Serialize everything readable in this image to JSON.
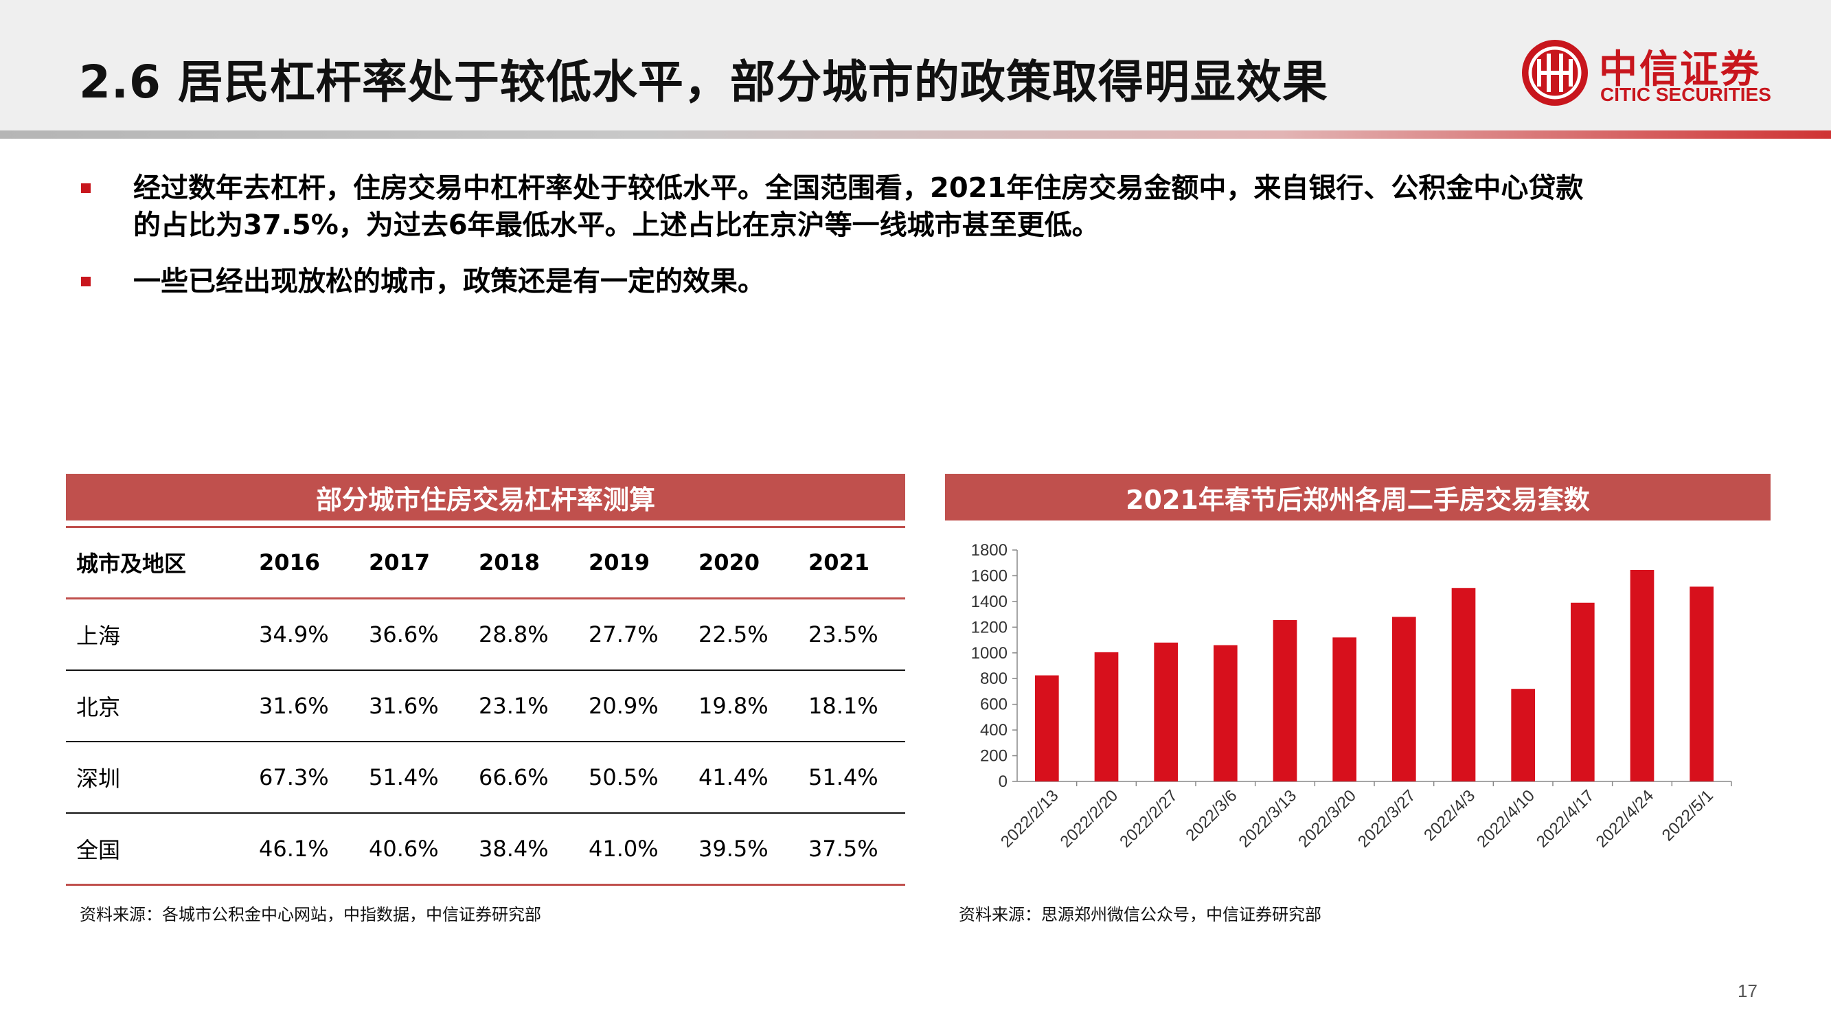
{
  "header": {
    "title": "2.6 居民杠杆率处于较低水平，部分城市的政策取得明显效果",
    "logo_cn": "中信证券",
    "logo_en": "CITIC SECURITIES",
    "logo_mark": "citic-logo-icon"
  },
  "bullets": [
    {
      "line1": "经过数年去杠杆，住房交易中杠杆率处于较低水平。全国范围看，2021年住房交易金额中，来自银行、公积金中心贷款",
      "line2": "的占比为37.5%，为过去6年最低水平。上述占比在京沪等一线城市甚至更低。"
    },
    {
      "line1": "一些已经出现放松的城市，政策还是有一定的效果。"
    }
  ],
  "table_panel": {
    "title": "部分城市住房交易杠杆率测算",
    "headers": [
      "城市及地区",
      "2016",
      "2017",
      "2018",
      "2019",
      "2020",
      "2021"
    ],
    "rows": [
      [
        "上海",
        "34.9%",
        "36.6%",
        "28.8%",
        "27.7%",
        "22.5%",
        "23.5%"
      ],
      [
        "北京",
        "31.6%",
        "31.6%",
        "23.1%",
        "20.9%",
        "19.8%",
        "18.1%"
      ],
      [
        "深圳",
        "67.3%",
        "51.4%",
        "66.6%",
        "50.5%",
        "41.4%",
        "51.4%"
      ],
      [
        "全国",
        "46.1%",
        "40.6%",
        "38.4%",
        "41.0%",
        "39.5%",
        "37.5%"
      ]
    ],
    "source": "资料来源：各城市公积金中心网站，中指数据，中信证券研究部"
  },
  "chart_panel": {
    "title": "2021年春节后郑州各周二手房交易套数",
    "source": "资料来源：思源郑州微信公众号，中信证券研究部"
  },
  "chart_data": {
    "type": "bar",
    "title": "2021年春节后郑州各周二手房交易套数",
    "categories": [
      "2022/2/13",
      "2022/2/20",
      "2022/2/27",
      "2022/3/6",
      "2022/3/13",
      "2022/3/20",
      "2022/3/27",
      "2022/4/3",
      "2022/4/10",
      "2022/4/17",
      "2022/4/24",
      "2022/5/1"
    ],
    "values": [
      825,
      1005,
      1080,
      1060,
      1255,
      1120,
      1280,
      1505,
      720,
      1390,
      1645,
      1515
    ],
    "ylim": [
      0,
      1800
    ],
    "yticks": [
      0,
      200,
      400,
      600,
      800,
      1000,
      1200,
      1400,
      1600,
      1800
    ],
    "xlabel": "",
    "ylabel": "",
    "grid": false,
    "bar_color": "#d7101c"
  },
  "page_number": "17"
}
